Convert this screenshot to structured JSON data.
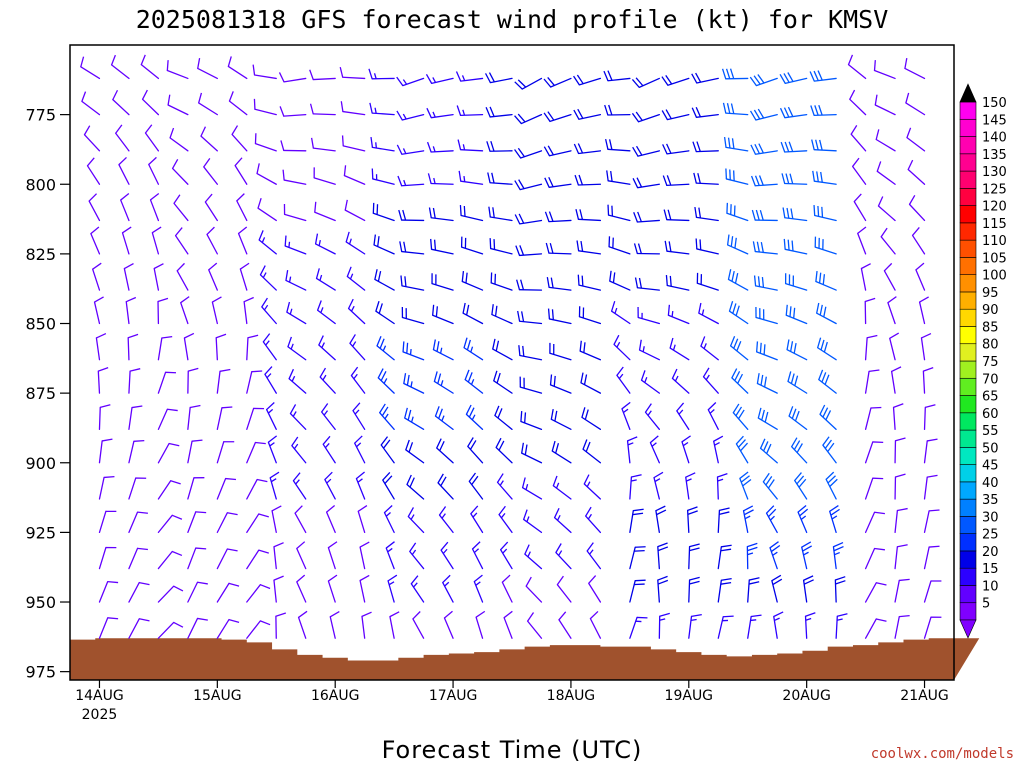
{
  "chart_data": {
    "type": "wind-barb-profile",
    "title": "2025081318 GFS forecast wind profile (kt) for KMSV",
    "xlabel": "Forecast Time (UTC)",
    "ylabel": "",
    "credit": "coolwx.com/models",
    "x_ticks": [
      {
        "label": "14AUG",
        "sub": "2025",
        "time": "2025-08-14T00"
      },
      {
        "label": "15AUG",
        "sub": "",
        "time": "2025-08-15T00"
      },
      {
        "label": "16AUG",
        "sub": "",
        "time": "2025-08-16T00"
      },
      {
        "label": "17AUG",
        "sub": "",
        "time": "2025-08-17T00"
      },
      {
        "label": "18AUG",
        "sub": "",
        "time": "2025-08-18T00"
      },
      {
        "label": "19AUG",
        "sub": "",
        "time": "2025-08-19T00"
      },
      {
        "label": "20AUG",
        "sub": "",
        "time": "2025-08-20T00"
      },
      {
        "label": "21AUG",
        "sub": "",
        "time": "2025-08-21T00"
      }
    ],
    "xlim": [
      "2025-08-13T18",
      "2025-08-21T06"
    ],
    "y_ticks": [
      775,
      800,
      825,
      850,
      875,
      900,
      925,
      950,
      975
    ],
    "ylim": [
      750,
      978
    ],
    "pressure_levels": [
      762,
      775,
      788,
      800,
      813,
      825,
      838,
      850,
      863,
      875,
      888,
      900,
      913,
      925,
      938,
      950,
      963,
      975
    ],
    "time_step_hours": 6,
    "colorbar": {
      "labels": [
        5,
        10,
        15,
        20,
        25,
        30,
        35,
        40,
        45,
        50,
        55,
        60,
        65,
        70,
        75,
        80,
        85,
        90,
        95,
        100,
        105,
        110,
        115,
        120,
        125,
        130,
        135,
        140,
        145,
        150
      ],
      "colors": [
        "#8000ff",
        "#6200ff",
        "#2c00ff",
        "#0000e8",
        "#0030ff",
        "#0058ff",
        "#0080ff",
        "#00a8ff",
        "#00d0e8",
        "#00e8c0",
        "#00e890",
        "#00e860",
        "#20e820",
        "#60ee20",
        "#a0f020",
        "#e0f020",
        "#ffff00",
        "#ffd800",
        "#ffb000",
        "#ff9000",
        "#ff7000",
        "#ff5000",
        "#ff2800",
        "#ff0000",
        "#ff0040",
        "#ff0070",
        "#ff0090",
        "#ff00b0",
        "#ff00d0",
        "#ff00f0"
      ],
      "low_arrow": "#8000ff",
      "high_arrow": "#000000"
    },
    "terrain": {
      "color": "#a0522d",
      "surface_pressure_mb": [
        963.5,
        963,
        963,
        963,
        963,
        963,
        963.5,
        964.5,
        967,
        969,
        970,
        971,
        971,
        970,
        969,
        968.5,
        968,
        967,
        966,
        965.5,
        965.5,
        966,
        966,
        967,
        968,
        969,
        969.5,
        969,
        968.5,
        967.5,
        966,
        965.5,
        964.5,
        963.5,
        963,
        963
      ]
    },
    "winds": {
      "directions_deg_by_day": [
        [
          305,
          310,
          320,
          330,
          335,
          340,
          345,
          350,
          355,
          0,
          5,
          10,
          15,
          20,
          20,
          25,
          25,
          25
        ],
        [
          300,
          305,
          315,
          325,
          330,
          335,
          340,
          350,
          0,
          10,
          15,
          20,
          25,
          30,
          30,
          35,
          35,
          35
        ],
        [
          270,
          275,
          280,
          290,
          295,
          300,
          305,
          310,
          315,
          320,
          325,
          330,
          335,
          340,
          345,
          345,
          350,
          350
        ],
        [
          260,
          265,
          270,
          275,
          280,
          285,
          290,
          295,
          300,
          305,
          310,
          315,
          320,
          325,
          330,
          335,
          340,
          340
        ],
        [
          250,
          255,
          260,
          265,
          270,
          275,
          280,
          285,
          290,
          295,
          300,
          305,
          310,
          315,
          320,
          325,
          330,
          330
        ],
        [
          255,
          260,
          265,
          270,
          275,
          280,
          285,
          295,
          305,
          315,
          330,
          345,
          355,
          0,
          5,
          5,
          10,
          10
        ],
        [
          260,
          265,
          270,
          275,
          280,
          285,
          290,
          295,
          300,
          305,
          310,
          320,
          330,
          340,
          350,
          355,
          0,
          0
        ],
        [
          300,
          305,
          310,
          315,
          320,
          330,
          340,
          350,
          355,
          0,
          5,
          10,
          10,
          15,
          15,
          20,
          20,
          20
        ]
      ],
      "speeds_kt_by_day": [
        [
          10,
          10,
          10,
          10,
          10,
          10,
          10,
          10,
          10,
          10,
          10,
          10,
          10,
          10,
          10,
          10,
          10,
          10
        ],
        [
          10,
          10,
          10,
          10,
          10,
          10,
          10,
          10,
          10,
          10,
          10,
          10,
          10,
          10,
          10,
          10,
          10,
          10
        ],
        [
          10,
          10,
          10,
          10,
          10,
          15,
          15,
          15,
          15,
          15,
          15,
          15,
          15,
          10,
          10,
          10,
          10,
          10
        ],
        [
          15,
          15,
          15,
          15,
          20,
          20,
          20,
          20,
          25,
          25,
          25,
          20,
          20,
          15,
          15,
          15,
          10,
          10
        ],
        [
          20,
          20,
          20,
          20,
          20,
          20,
          20,
          20,
          20,
          20,
          20,
          20,
          15,
          15,
          15,
          10,
          10,
          10
        ],
        [
          20,
          20,
          20,
          20,
          20,
          20,
          20,
          15,
          15,
          15,
          15,
          15,
          15,
          20,
          20,
          20,
          15,
          15
        ],
        [
          30,
          30,
          30,
          30,
          30,
          30,
          30,
          30,
          30,
          30,
          30,
          30,
          30,
          25,
          25,
          20,
          15,
          15
        ],
        [
          10,
          10,
          10,
          10,
          10,
          10,
          10,
          10,
          10,
          10,
          10,
          10,
          10,
          10,
          10,
          10,
          10,
          10
        ]
      ]
    }
  }
}
